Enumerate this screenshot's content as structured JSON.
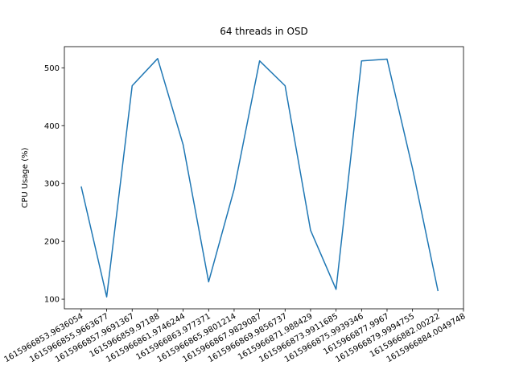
{
  "chart_data": {
    "type": "line",
    "title": "64 threads in OSD",
    "y_label": "CPU Usage (%)",
    "categories": [
      "1615966853.9636054",
      "1615966855.9663677",
      "1615966857.9691367",
      "1615966859.97188",
      "1615966861.9746244",
      "1615966863.977371",
      "1615966865.9801214",
      "1615966867.9829087",
      "1615966869.9856737",
      "1615966871.988429",
      "1615966873.9911685",
      "1615966875.9939346",
      "1615966877.9967",
      "1615966879.9994755",
      "1615966882.00222",
      "1615966884.0049748"
    ],
    "series": [
      {
        "name": "CPU",
        "color": "#1f77b4",
        "values": [
          295,
          104,
          469,
          516,
          367,
          130,
          290,
          512,
          469,
          219,
          117,
          512,
          515,
          326,
          114,
          null
        ]
      }
    ],
    "xlim": [
      -0.66,
      15
    ],
    "ylim": [
      83.4,
      536.6
    ],
    "yticks": [
      100,
      200,
      300,
      400,
      500
    ],
    "grid": false
  }
}
